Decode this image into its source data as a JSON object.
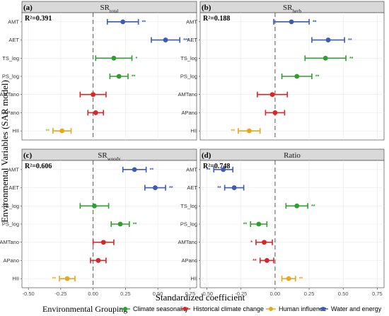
{
  "xlabel": "Standardized coefficient",
  "ylabel": "Environmental Variables (SAR model)",
  "legend": {
    "title": "Environmental Grouping",
    "items": [
      {
        "name": "Climate seasonality",
        "color": "#2ca02c"
      },
      {
        "name": "Historical climate change",
        "color": "#d62728"
      },
      {
        "name": "Human influence",
        "color": "#e6a817"
      },
      {
        "name": "Water and energy",
        "color": "#3b5bb5"
      }
    ]
  },
  "chart_data": [
    {
      "type": "scatter",
      "panel": "(a)",
      "strip_main": "SR",
      "strip_sub": "total",
      "r2": "R²=0.391",
      "categories": [
        "AMT",
        "AET",
        "TS_log",
        "PS_log",
        "AMTano",
        "APano",
        "HII"
      ],
      "values": [
        0.23,
        0.56,
        0.16,
        0.2,
        0.0,
        0.02,
        -0.24
      ],
      "ci_low": [
        0.11,
        0.45,
        0.02,
        0.13,
        -0.1,
        -0.04,
        -0.31
      ],
      "ci_high": [
        0.35,
        0.67,
        0.3,
        0.27,
        0.1,
        0.08,
        -0.17
      ],
      "sig": [
        "**",
        "***",
        "*",
        "**",
        "",
        "",
        "**"
      ],
      "groups": [
        "Water and energy",
        "Water and energy",
        "Climate seasonality",
        "Climate seasonality",
        "Historical climate change",
        "Historical climate change",
        "Human influence"
      ],
      "xlim": [
        -0.55,
        0.8
      ],
      "xticks": [
        "-0.50",
        "-0.25",
        "0.00",
        "0.25",
        "0.50",
        "0.75"
      ]
    },
    {
      "type": "scatter",
      "panel": "(b)",
      "strip_main": "SR",
      "strip_sub": "herb",
      "r2": "R²=0.188",
      "categories": [
        "AMT",
        "AET",
        "TS_log",
        "PS_log",
        "AMTano",
        "APano",
        "HII"
      ],
      "values": [
        0.12,
        0.39,
        0.37,
        0.16,
        -0.02,
        0.0,
        -0.19
      ],
      "ci_low": [
        -0.01,
        0.27,
        0.22,
        0.05,
        -0.13,
        -0.07,
        -0.27
      ],
      "ci_high": [
        0.25,
        0.51,
        0.52,
        0.27,
        0.09,
        0.07,
        -0.11
      ],
      "sig": [
        "**",
        "**",
        "**",
        "**",
        "",
        "",
        "**"
      ],
      "groups": [
        "Water and energy",
        "Water and energy",
        "Climate seasonality",
        "Climate seasonality",
        "Historical climate change",
        "Historical climate change",
        "Human influence"
      ],
      "xlim": [
        -0.55,
        0.8
      ],
      "xticks": [
        "-0.50",
        "-0.25",
        "0.00",
        "0.25",
        "0.50",
        "0.75"
      ]
    },
    {
      "type": "scatter",
      "panel": "(c)",
      "strip_main": "SR",
      "strip_sub": "woody",
      "r2": "R²=0.606",
      "categories": [
        "AMT",
        "AET",
        "TS_log",
        "PS_log",
        "AMTano",
        "APano",
        "HII"
      ],
      "values": [
        0.32,
        0.48,
        0.01,
        0.21,
        0.08,
        0.04,
        -0.2
      ],
      "ci_low": [
        0.23,
        0.4,
        -0.1,
        0.14,
        0.0,
        -0.02,
        -0.26
      ],
      "ci_high": [
        0.41,
        0.56,
        0.12,
        0.28,
        0.16,
        0.1,
        -0.14
      ],
      "sig": [
        "**",
        "**",
        "",
        "**",
        "",
        "",
        "**"
      ],
      "groups": [
        "Water and energy",
        "Water and energy",
        "Climate seasonality",
        "Climate seasonality",
        "Historical climate change",
        "Historical climate change",
        "Human influence"
      ],
      "xlim": [
        -0.55,
        0.8
      ],
      "xticks": [
        "-0.50",
        "-0.25",
        "0.00",
        "0.25",
        "0.50",
        "0.75"
      ]
    },
    {
      "type": "scatter",
      "panel": "(d)",
      "strip_main": "Ratio",
      "strip_sub": "",
      "r2": "R²=0.748",
      "categories": [
        "AMT",
        "AET",
        "TS_log",
        "PS_log",
        "AMTano",
        "APano",
        "HII"
      ],
      "values": [
        -0.38,
        -0.3,
        0.16,
        -0.12,
        -0.08,
        -0.06,
        0.1
      ],
      "ci_low": [
        -0.45,
        -0.37,
        0.08,
        -0.18,
        -0.14,
        -0.11,
        0.05
      ],
      "ci_high": [
        -0.31,
        -0.23,
        0.24,
        -0.06,
        -0.02,
        -0.01,
        0.15
      ],
      "sig": [
        "**",
        "**",
        "**",
        "**",
        "*",
        "**",
        "**"
      ],
      "groups": [
        "Water and energy",
        "Water and energy",
        "Climate seasonality",
        "Climate seasonality",
        "Historical climate change",
        "Historical climate change",
        "Human influence"
      ],
      "xlim": [
        -0.55,
        0.8
      ],
      "xticks": [
        "-0.50",
        "-0.25",
        "0.00",
        "0.25",
        "0.50",
        "0.75"
      ]
    }
  ]
}
